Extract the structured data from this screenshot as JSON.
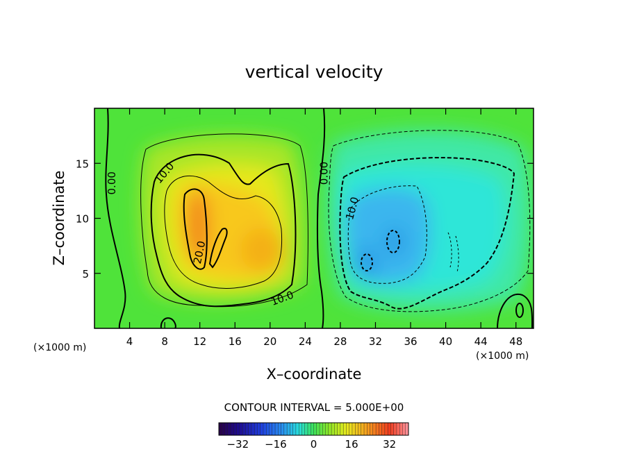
{
  "chart_data": {
    "type": "heatmap",
    "title": "vertical velocity",
    "xlabel": "X–coordinate",
    "ylabel": "Z–coordinate",
    "x_unit": "(×1000 m)",
    "xlim": [
      0,
      50
    ],
    "ylim": [
      0,
      20
    ],
    "x_ticks": [
      4,
      8,
      12,
      16,
      20,
      24,
      28,
      32,
      36,
      40,
      44,
      48
    ],
    "y_ticks": [
      5,
      10,
      15
    ],
    "contour_interval_label": "CONTOUR INTERVAL = 5.000E+00",
    "colorbar": {
      "range": [
        -40,
        40
      ],
      "ticks": [
        -32,
        -16,
        0,
        16,
        32
      ],
      "tick_labels": [
        "−32",
        "−16",
        "0",
        "16",
        "32"
      ]
    },
    "contour_labels": [
      {
        "text": "0.00",
        "x": 2.0,
        "y": 13.2,
        "rotate": -90
      },
      {
        "text": "10.0",
        "x": 8.0,
        "y": 14.1,
        "rotate": -50
      },
      {
        "text": "20.0",
        "x": 12.0,
        "y": 6.9,
        "rotate": -78
      },
      {
        "text": "10.0",
        "x": 21.4,
        "y": 2.7,
        "rotate": -20
      },
      {
        "text": "0.00",
        "x": 26.2,
        "y": 14.1,
        "rotate": -90
      },
      {
        "text": "10.0",
        "x": 29.4,
        "y": 10.9,
        "rotate": -75
      }
    ],
    "features": [
      {
        "kind": "updraft",
        "x": 11.0,
        "y": 9.5,
        "peak": 30
      },
      {
        "kind": "updraft",
        "x": 19.0,
        "y": 7.5,
        "peak": 22
      },
      {
        "kind": "downdraft",
        "x": 31.0,
        "y": 6.5,
        "peak": -22
      },
      {
        "kind": "downdraft",
        "x": 34.5,
        "y": 8.0,
        "peak": -20
      }
    ]
  }
}
